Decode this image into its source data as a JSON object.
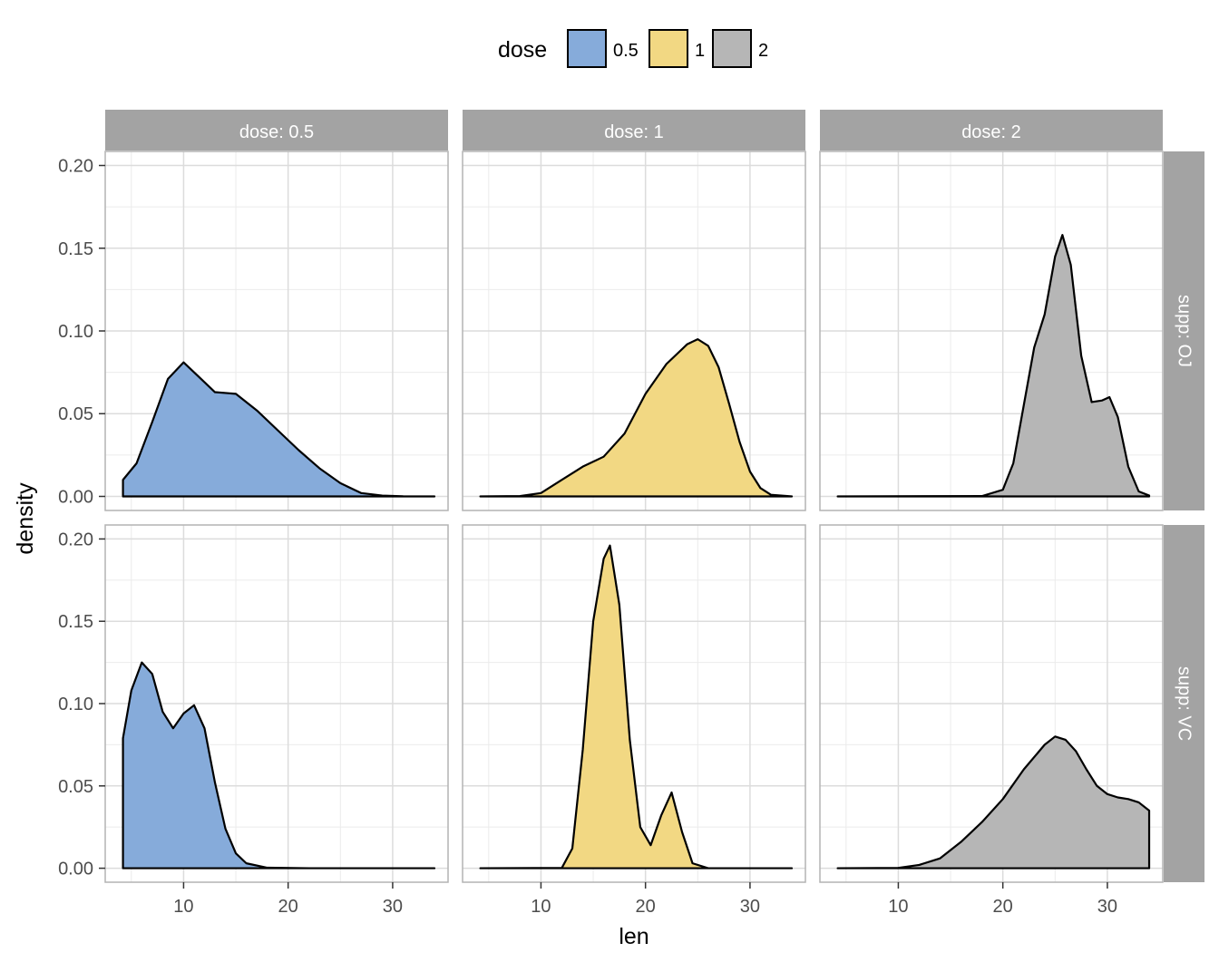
{
  "chart_data": {
    "type": "area",
    "xlabel": "len",
    "ylabel": "density",
    "x_ticks": [
      10,
      20,
      30
    ],
    "y_ticks": [
      "0.00",
      "0.05",
      "0.10",
      "0.15",
      "0.20"
    ],
    "xlim": [
      2.5,
      35.3
    ],
    "ylim": [
      -0.0085,
      0.2085
    ],
    "grid": true,
    "legend": {
      "title": "dose",
      "position": "top",
      "items": [
        {
          "label": "0.5",
          "color": "#86ABDA"
        },
        {
          "label": "1",
          "color": "#F2D883"
        },
        {
          "label": "2",
          "color": "#B6B6B6"
        }
      ]
    },
    "col_strips": [
      "dose: 0.5",
      "dose: 1",
      "dose: 2"
    ],
    "row_strips": [
      "supp: OJ",
      "supp: VC"
    ],
    "panels": [
      {
        "row": 0,
        "col": 0,
        "dose": "0.5",
        "color": "#86ABDA",
        "x": [
          4.2,
          5.5,
          7,
          8.5,
          10,
          11.5,
          13,
          15,
          17,
          19,
          21,
          23,
          25,
          27,
          29,
          31,
          34
        ],
        "y": [
          0.01,
          0.02,
          0.045,
          0.071,
          0.081,
          0.072,
          0.063,
          0.062,
          0.052,
          0.04,
          0.028,
          0.017,
          0.008,
          0.002,
          0.0005,
          0.0001,
          0
        ]
      },
      {
        "row": 0,
        "col": 1,
        "dose": "1",
        "color": "#F2D883",
        "x": [
          4.2,
          8,
          10,
          12,
          14,
          16,
          18,
          20,
          22,
          24,
          25,
          26,
          27,
          28,
          29,
          30,
          31,
          32,
          34
        ],
        "y": [
          0,
          0.0002,
          0.002,
          0.01,
          0.018,
          0.024,
          0.038,
          0.062,
          0.08,
          0.092,
          0.095,
          0.091,
          0.078,
          0.056,
          0.033,
          0.015,
          0.005,
          0.001,
          0
        ]
      },
      {
        "row": 0,
        "col": 2,
        "dose": "2",
        "color": "#B6B6B6",
        "x": [
          4.2,
          18,
          20,
          21,
          22,
          23,
          24,
          25,
          25.7,
          26.5,
          27.5,
          28.5,
          29.5,
          30.2,
          31,
          32,
          33,
          34
        ],
        "y": [
          0,
          0.0002,
          0.004,
          0.02,
          0.055,
          0.09,
          0.11,
          0.145,
          0.158,
          0.14,
          0.085,
          0.057,
          0.058,
          0.06,
          0.048,
          0.018,
          0.003,
          0.0005
        ]
      },
      {
        "row": 1,
        "col": 0,
        "dose": "0.5",
        "color": "#86ABDA",
        "x": [
          4.2,
          5,
          6,
          7,
          8,
          9,
          10,
          11,
          12,
          13,
          14,
          15,
          16,
          18,
          22,
          34
        ],
        "y": [
          0.079,
          0.108,
          0.125,
          0.118,
          0.095,
          0.085,
          0.094,
          0.099,
          0.085,
          0.052,
          0.024,
          0.009,
          0.003,
          0.0003,
          0,
          0
        ]
      },
      {
        "row": 1,
        "col": 1,
        "dose": "1",
        "color": "#F2D883",
        "x": [
          4.2,
          12,
          13,
          14,
          15,
          16,
          16.6,
          17.5,
          18.5,
          19.5,
          20.5,
          21.5,
          22.5,
          23.5,
          24.5,
          26,
          34
        ],
        "y": [
          0,
          0.0002,
          0.012,
          0.072,
          0.15,
          0.188,
          0.196,
          0.16,
          0.078,
          0.025,
          0.014,
          0.032,
          0.046,
          0.022,
          0.003,
          0,
          0
        ]
      },
      {
        "row": 1,
        "col": 2,
        "dose": "2",
        "color": "#B6B6B6",
        "x": [
          4.2,
          10,
          12,
          14,
          16,
          18,
          20,
          22,
          24,
          25,
          26,
          27,
          28,
          29,
          30,
          31,
          32,
          33,
          34
        ],
        "y": [
          0,
          0.0002,
          0.002,
          0.006,
          0.016,
          0.028,
          0.042,
          0.06,
          0.075,
          0.08,
          0.078,
          0.071,
          0.06,
          0.05,
          0.045,
          0.043,
          0.042,
          0.04,
          0.035
        ]
      }
    ]
  }
}
